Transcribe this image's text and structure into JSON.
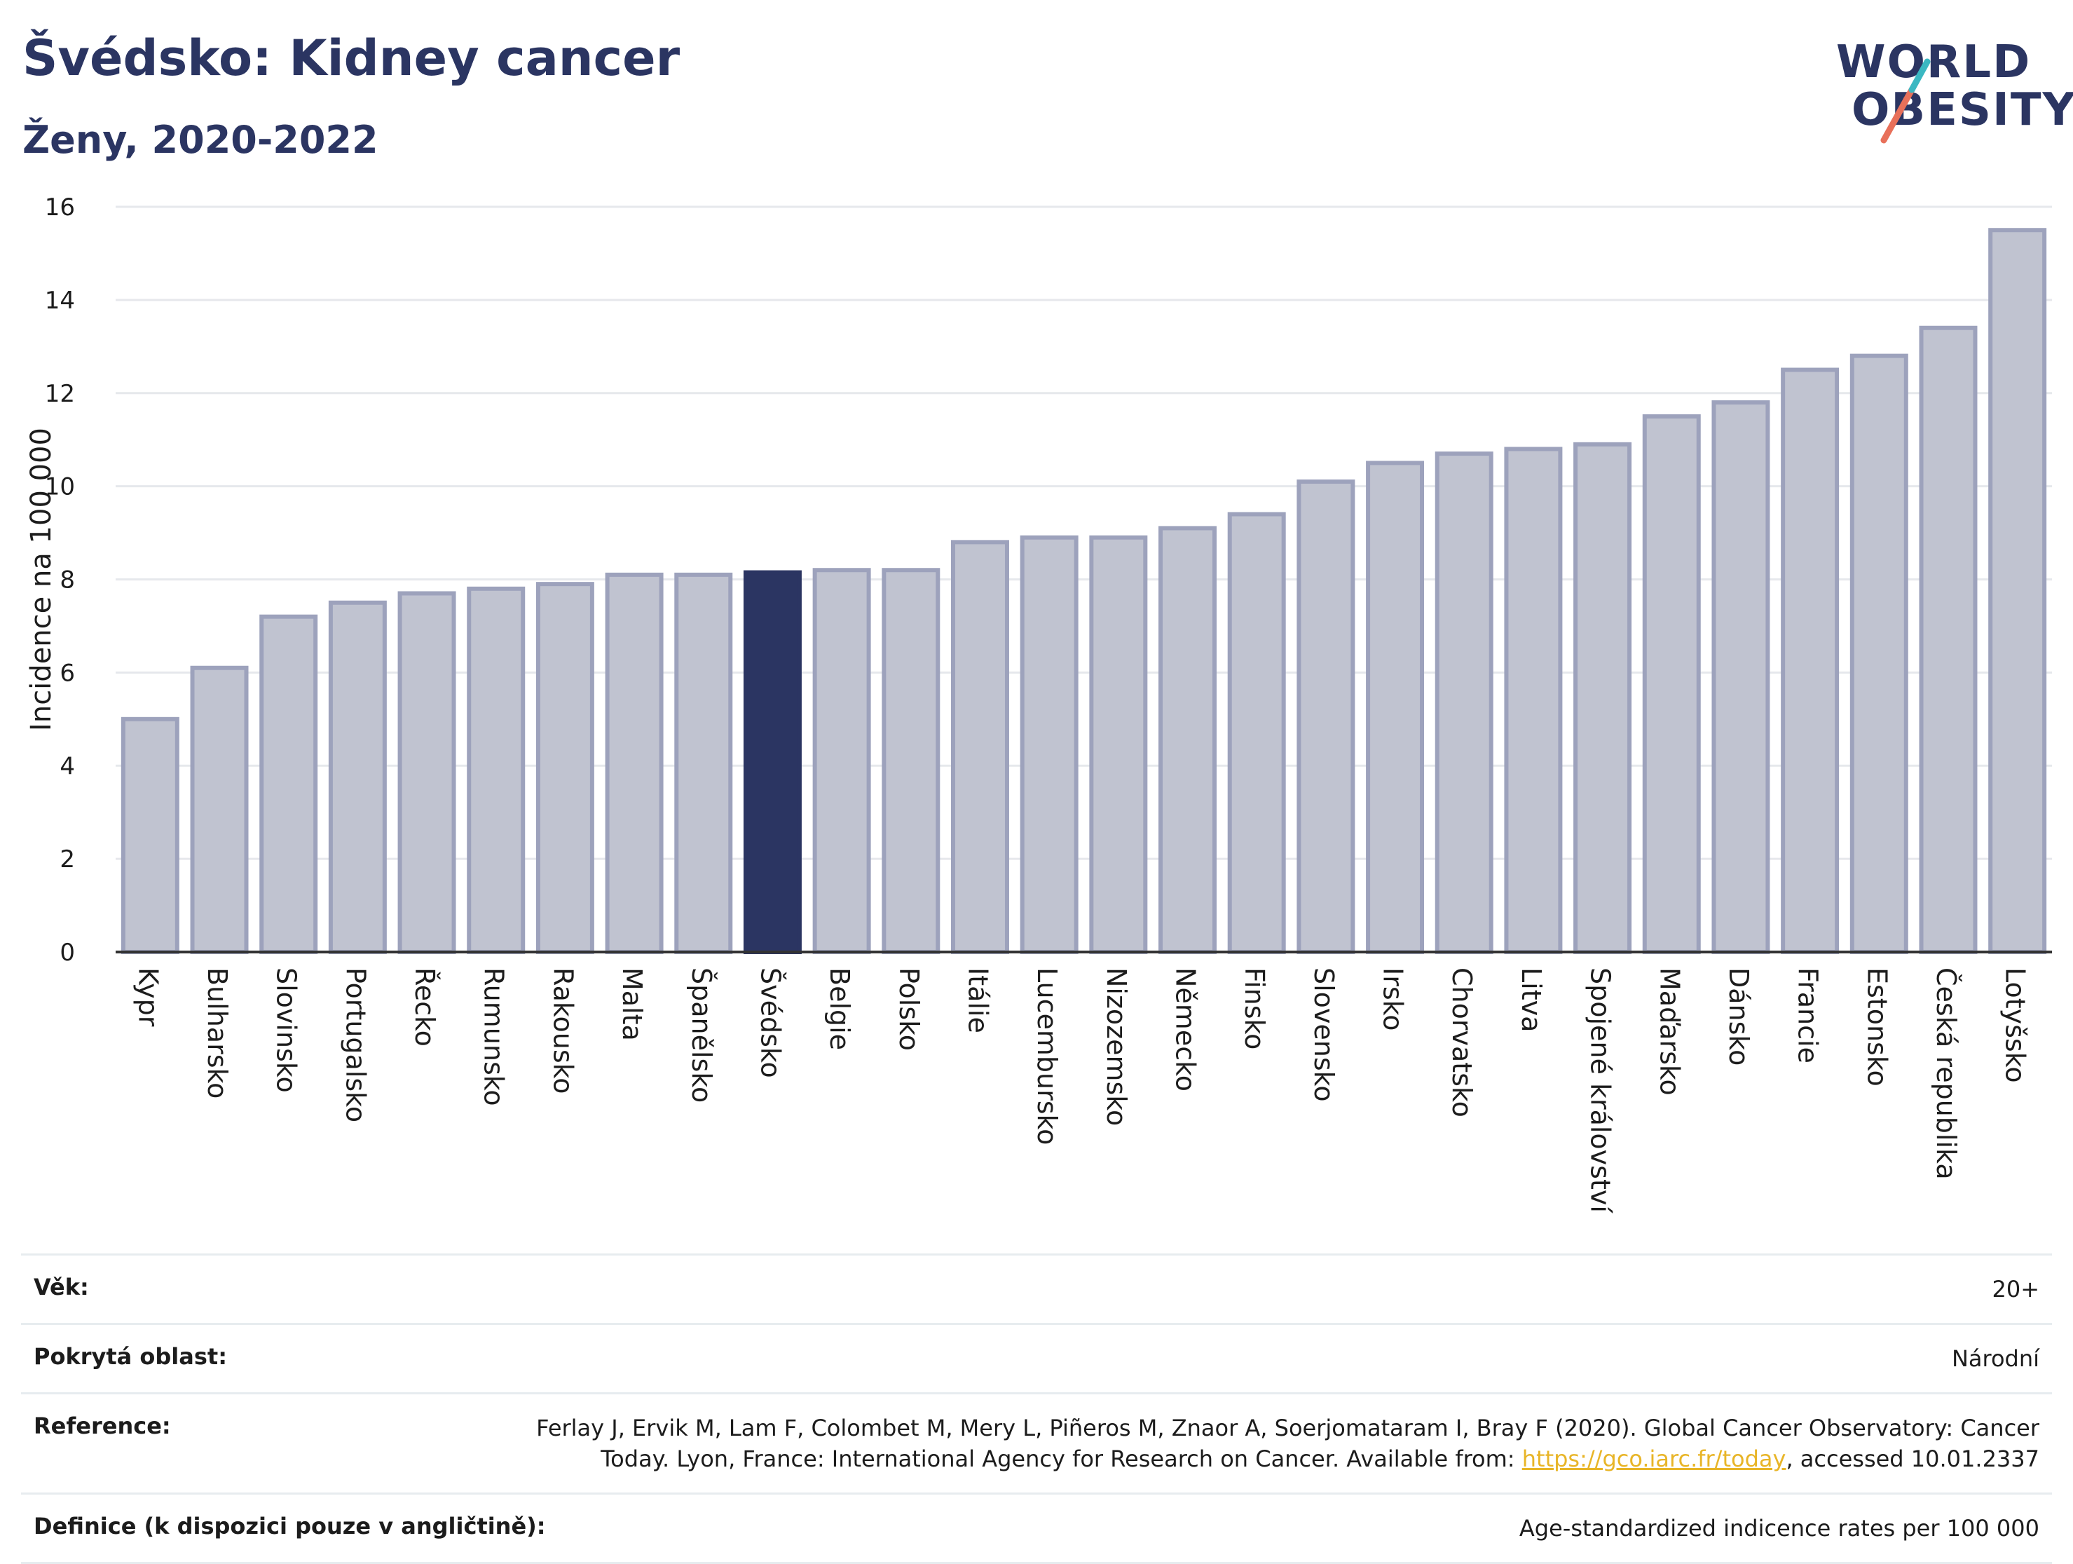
{
  "header": {
    "title": "Švédsko: Kidney cancer",
    "subtitle": "Ženy, 2020-2022"
  },
  "logo": {
    "line1": "WORLD",
    "line2": "OBESITY"
  },
  "colors": {
    "bar": "#c0c3d0",
    "bar_stroke": "#9da2bc",
    "highlight": "#2b3562",
    "title": "#2b3562",
    "link": "#e8b528"
  },
  "chart_data": {
    "type": "bar",
    "title": "Švédsko: Kidney cancer",
    "subtitle": "Ženy, 2020-2022",
    "ylabel": "Incidence na 100 000",
    "xlabel": "",
    "ylim": [
      0,
      16
    ],
    "yticks": [
      0,
      2,
      4,
      6,
      8,
      10,
      12,
      14,
      16
    ],
    "grid": true,
    "highlight": "Švédsko",
    "categories": [
      "Kypr",
      "Bulharsko",
      "Slovinsko",
      "Portugalsko",
      "Řecko",
      "Rumunsko",
      "Rakousko",
      "Malta",
      "Španělsko",
      "Švédsko",
      "Belgie",
      "Polsko",
      "Itálie",
      "Lucembursko",
      "Nizozemsko",
      "Německo",
      "Finsko",
      "Slovensko",
      "Irsko",
      "Chorvatsko",
      "Litva",
      "Spojené království",
      "Maďarsko",
      "Dánsko",
      "Francie",
      "Estonsko",
      "Česká republika",
      "Lotyšsko"
    ],
    "values": [
      5.0,
      6.1,
      7.2,
      7.5,
      7.7,
      7.8,
      7.9,
      8.1,
      8.1,
      8.15,
      8.2,
      8.2,
      8.8,
      8.9,
      8.9,
      9.1,
      9.4,
      10.1,
      10.5,
      10.7,
      10.8,
      10.9,
      11.5,
      11.8,
      12.5,
      12.8,
      13.4,
      15.5
    ]
  },
  "meta": {
    "age_label": "Věk:",
    "age_value": "20+",
    "area_label": "Pokrytá oblast:",
    "area_value": "Národní",
    "reference_label": "Reference:",
    "reference_text": "Ferlay J, Ervik M, Lam F, Colombet M, Mery L, Piñeros M, Znaor A, Soerjomataram I, Bray F (2020). Global Cancer Observatory: Cancer Today. Lyon, France: International Agency for Research on Cancer. Available from: ",
    "reference_link": "https://gco.iarc.fr/today",
    "reference_tail": ", accessed 10.01.2337",
    "definition_label": "Definice (k dispozici pouze v angličtině):",
    "definition_value": "Age-standardized indicence rates per 100 000"
  }
}
